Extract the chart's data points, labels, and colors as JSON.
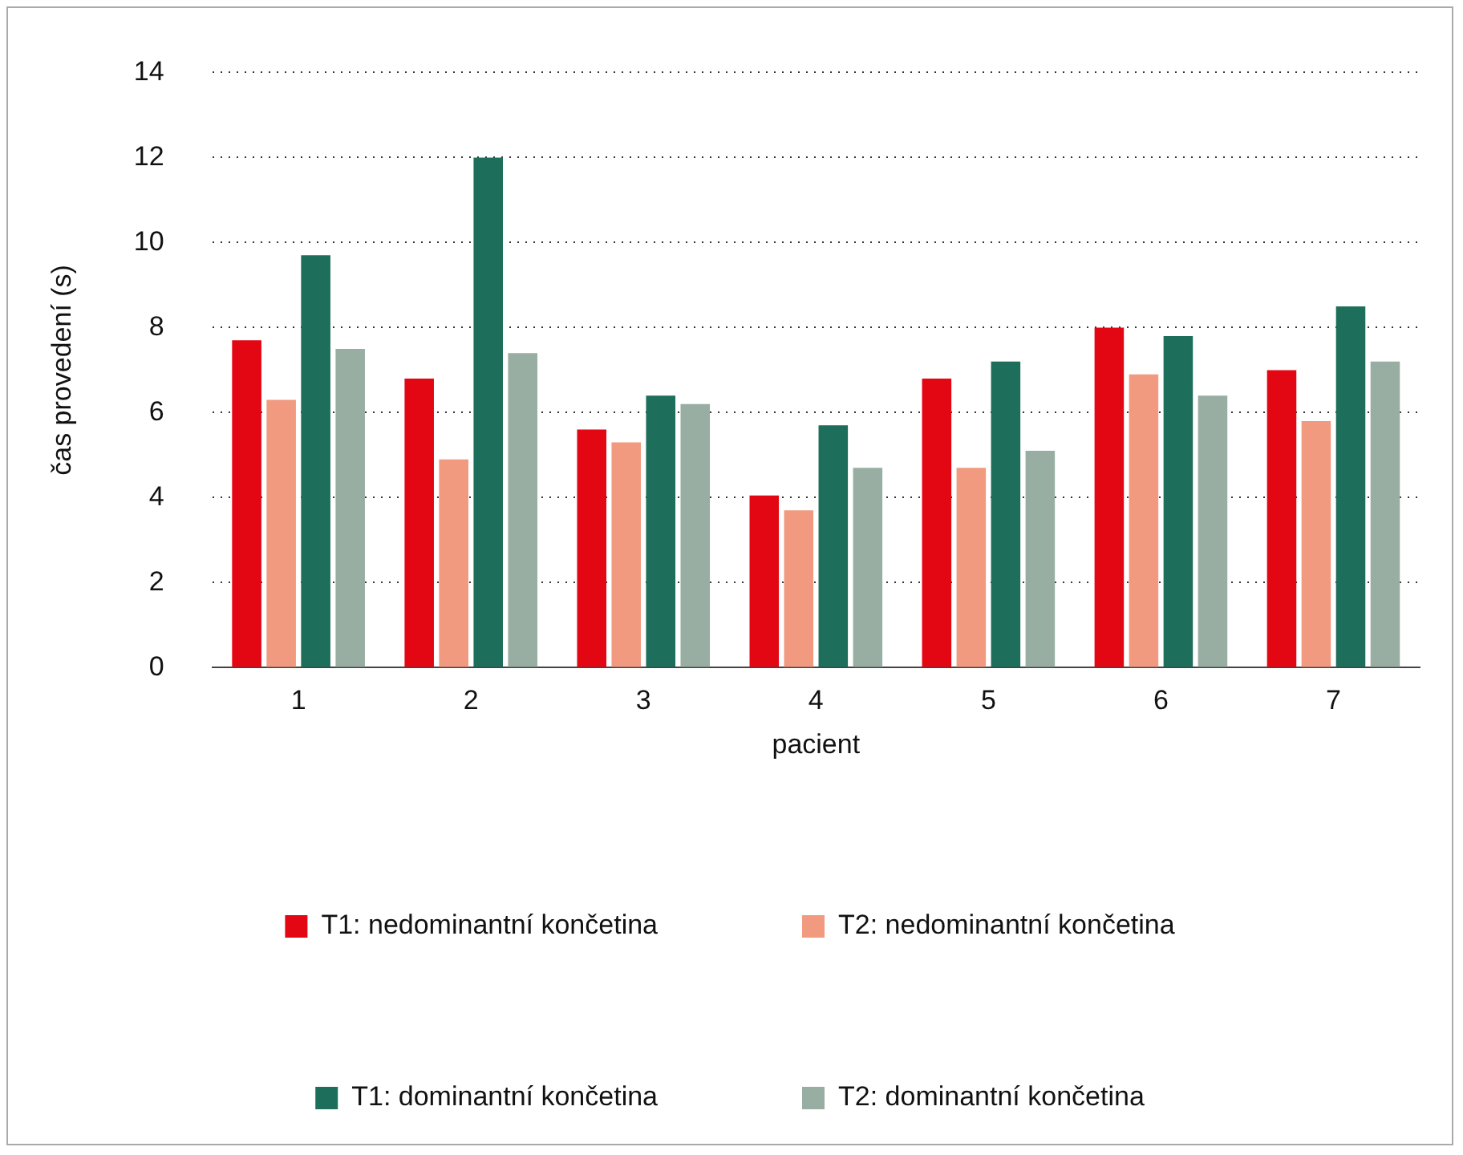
{
  "chart_data": {
    "type": "bar",
    "xlabel": "pacient",
    "ylabel": "čas provedení (s)",
    "categories": [
      "1",
      "2",
      "3",
      "4",
      "5",
      "6",
      "7"
    ],
    "series": [
      {
        "name": "T1: nedominantní končetina",
        "color": "#e30613",
        "values": [
          7.7,
          6.8,
          5.6,
          4.05,
          6.8,
          8.0,
          7.0
        ]
      },
      {
        "name": "T2: nedominantní končetina",
        "color": "#f19a80",
        "values": [
          6.3,
          4.9,
          5.3,
          3.7,
          4.7,
          6.9,
          5.8
        ]
      },
      {
        "name": "T1: dominantní končetina",
        "color": "#1d6e5a",
        "values": [
          9.7,
          12.0,
          6.4,
          5.7,
          7.2,
          7.8,
          8.5
        ]
      },
      {
        "name": "T2: dominantní končetina",
        "color": "#98aea3",
        "values": [
          7.5,
          7.4,
          6.2,
          4.7,
          5.1,
          6.4,
          7.2
        ]
      }
    ],
    "ylim": [
      0,
      14
    ],
    "yticks": [
      0,
      2,
      4,
      6,
      8,
      10,
      12,
      14
    ],
    "grid": "y",
    "legend": "bottom"
  }
}
